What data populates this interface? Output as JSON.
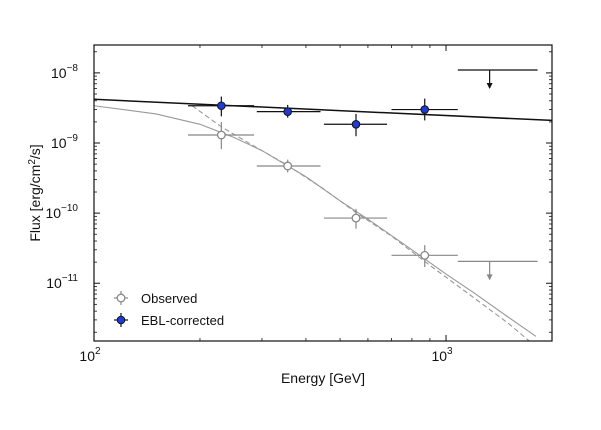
{
  "chart_data": {
    "type": "scatter",
    "title": "",
    "xlabel": "Energy [GeV]",
    "ylabel": "Flux [erg/cm²/s]",
    "ylabel_parts": {
      "before": "Flux [erg/cm",
      "sup": "2",
      "after": "/s]"
    },
    "x_scale": "log",
    "y_scale": "log",
    "xlim": [
      100,
      2000
    ],
    "ylim": [
      1.5e-12,
      2.5e-08
    ],
    "grid": false,
    "legend_position": "lower-left",
    "x_ticks": [
      {
        "value": 100,
        "base": "10",
        "exp": "2"
      },
      {
        "value": 1000,
        "base": "10",
        "exp": "3"
      }
    ],
    "y_ticks": [
      {
        "value": 1e-08,
        "base": "10",
        "exp": "−8"
      },
      {
        "value": 1e-09,
        "base": "10",
        "exp": "−9"
      },
      {
        "value": 1e-10,
        "base": "10",
        "exp": "−10"
      },
      {
        "value": 1e-11,
        "base": "10",
        "exp": "−11"
      }
    ],
    "series": [
      {
        "name": "Observed",
        "marker": "open-circle",
        "color": "#888888",
        "points": [
          {
            "x": 230,
            "xerr": [
              185,
              285
            ],
            "y": 1.3e-09,
            "yerr": [
              8.2e-10,
              2e-09
            ]
          },
          {
            "x": 355,
            "xerr": [
              290,
              440
            ],
            "y": 4.7e-10,
            "yerr": [
              3.8e-10,
              5.8e-10
            ]
          },
          {
            "x": 555,
            "xerr": [
              450,
              680
            ],
            "y": 8.5e-11,
            "yerr": [
              6e-11,
              1.15e-10
            ]
          },
          {
            "x": 870,
            "xerr": [
              700,
              1080
            ],
            "y": 2.5e-11,
            "yerr": [
              1.7e-11,
              3.5e-11
            ]
          }
        ],
        "upper_limits": [
          {
            "x": 1330,
            "xerr": [
              1080,
              1820
            ],
            "y": 2.05e-11
          }
        ]
      },
      {
        "name": "EBL-corrected",
        "marker": "filled-circle",
        "color": "#1f3bd6",
        "points": [
          {
            "x": 230,
            "xerr": [
              185,
              285
            ],
            "y": 3.4e-09,
            "yerr": [
              2.4e-09,
              4.6e-09
            ]
          },
          {
            "x": 355,
            "xerr": [
              290,
              440
            ],
            "y": 2.8e-09,
            "yerr": [
              2.3e-09,
              3.5e-09
            ]
          },
          {
            "x": 555,
            "xerr": [
              450,
              680
            ],
            "y": 1.85e-09,
            "yerr": [
              1.25e-09,
              2.6e-09
            ]
          },
          {
            "x": 870,
            "xerr": [
              700,
              1080
            ],
            "y": 3e-09,
            "yerr": [
              2.1e-09,
              4.3e-09
            ]
          }
        ],
        "upper_limits": [
          {
            "x": 1330,
            "xerr": [
              1080,
              1820
            ],
            "y": 1.1e-08
          }
        ]
      }
    ],
    "curves": [
      {
        "style": "solid",
        "color": "#111111",
        "points": [
          [
            100,
            4.2e-09
          ],
          [
            2000,
            2.1e-09
          ]
        ]
      },
      {
        "style": "solid",
        "color": "#999999",
        "points": [
          [
            100,
            3.4e-09
          ],
          [
            150,
            2.6e-09
          ],
          [
            200,
            1.85e-09
          ],
          [
            250,
            1.2e-09
          ],
          [
            300,
            7.8e-10
          ],
          [
            400,
            3.3e-10
          ],
          [
            500,
            1.5e-10
          ],
          [
            600,
            8.2e-11
          ],
          [
            800,
            3e-11
          ],
          [
            1000,
            1.35e-11
          ],
          [
            1200,
            7.3e-12
          ],
          [
            1500,
            3.3e-12
          ],
          [
            1800,
            1.75e-12
          ]
        ]
      },
      {
        "style": "dashed",
        "color": "#999999",
        "points": [
          [
            190,
            3.4e-09
          ],
          [
            230,
            1.7e-09
          ],
          [
            280,
            9.5e-10
          ],
          [
            350,
            5e-10
          ],
          [
            450,
            2.2e-10
          ],
          [
            550,
            1.05e-10
          ],
          [
            700,
            4.7e-11
          ],
          [
            900,
            1.8e-11
          ],
          [
            1200,
            6.2e-12
          ],
          [
            1500,
            2.7e-12
          ],
          [
            1800,
            1.25e-12
          ]
        ]
      }
    ]
  }
}
